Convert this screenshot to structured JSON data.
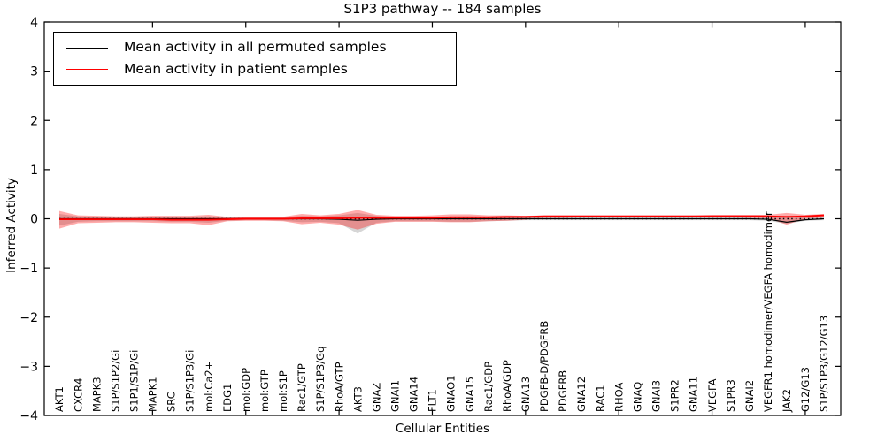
{
  "figure": {
    "title": "S1P3 pathway -- 184 samples"
  },
  "axes": {
    "x_label": "Cellular Entities",
    "y_label": "Inferred Activity"
  },
  "legend": {
    "items": [
      {
        "label": "Mean activity in all permuted samples",
        "color": "#000000"
      },
      {
        "label": "Mean activity in patient samples",
        "color": "#ff0000"
      }
    ]
  },
  "chart_data": {
    "type": "line",
    "title": "S1P3 pathway -- 184 samples",
    "xlabel": "Cellular Entities",
    "ylabel": "Inferred Activity",
    "ylim": [
      -4,
      4
    ],
    "grid": false,
    "legend_position": "upper left",
    "ytick_labels": [
      "4",
      "3",
      "2",
      "1",
      "0",
      "−1",
      "−2",
      "−3",
      "−4"
    ],
    "ytick_values": [
      4,
      3,
      2,
      1,
      0,
      -1,
      -2,
      -3,
      -4
    ],
    "xtick_major_indices": [
      5,
      10,
      15,
      20,
      25,
      30,
      35,
      40
    ],
    "zero_line": {
      "value": 0,
      "style": "dotted",
      "color": "#000000"
    },
    "entities": [
      "AKT1",
      "CXCR4",
      "MAPK3",
      "S1P/S1P2/Gi",
      "S1P1/S1P/Gi",
      "MAPK1",
      "SRC",
      "S1P/S1P3/Gi",
      "mol:Ca2+",
      "EDG1",
      "mol:GDP",
      "mol:GTP",
      "mol:S1P",
      "Rac1/GTP",
      "S1P/S1P3/Gq",
      "RhoA/GTP",
      "AKT3",
      "GNAZ",
      "GNAI1",
      "GNA14",
      "FLT1",
      "GNAO1",
      "GNA15",
      "Rac1/GDP",
      "RhoA/GDP",
      "GNA13",
      "PDGFB-D/PDGFRB",
      "PDGFRB",
      "GNA12",
      "RAC1",
      "RHOA",
      "GNAQ",
      "GNAI3",
      "S1PR2",
      "GNA11",
      "VEGFA",
      "S1PR3",
      "GNAI2",
      "VEGFR1 homodimer/VEGFA homodimer",
      "JAK2",
      "G12/G13",
      "S1P/S1P3/G12/G13"
    ],
    "series": [
      {
        "name": "Mean activity in all permuted samples",
        "color": "#000000",
        "values": [
          0,
          0,
          0,
          0,
          0,
          0,
          0,
          0,
          0,
          0,
          0,
          0,
          0,
          0,
          0,
          -0.01,
          -0.03,
          -0.01,
          0,
          0,
          0,
          0,
          0,
          0,
          0,
          0,
          0,
          0,
          0,
          0,
          0,
          0,
          0,
          0,
          0,
          0,
          0,
          0,
          -0.01,
          -0.07,
          -0.02,
          0
        ]
      },
      {
        "name": "Mean activity in patient samples",
        "color": "#ff0000",
        "values": [
          -0.01,
          -0.01,
          -0.01,
          -0.01,
          -0.01,
          -0.01,
          -0.02,
          -0.02,
          -0.02,
          -0.01,
          0,
          0,
          0,
          0.01,
          0.01,
          0.01,
          0.02,
          0.02,
          0.02,
          0.02,
          0.02,
          0.03,
          0.03,
          0.03,
          0.04,
          0.04,
          0.05,
          0.05,
          0.05,
          0.05,
          0.05,
          0.05,
          0.05,
          0.05,
          0.05,
          0.05,
          0.05,
          0.05,
          0.05,
          0.04,
          0.05,
          0.07
        ]
      }
    ],
    "bands": [
      {
        "name": "permuted-samples-band",
        "color": "#808080",
        "opacity": 0.32,
        "upper": [
          0.1,
          0.05,
          0.04,
          0.04,
          0.04,
          0.04,
          0.04,
          0.04,
          0.05,
          0.03,
          0.03,
          0.03,
          0.03,
          0.06,
          0.05,
          0.07,
          0.12,
          0.06,
          0.04,
          0.04,
          0.04,
          0.05,
          0.05,
          0.04,
          0.04,
          0.03,
          0.03,
          0.03,
          0.03,
          0.03,
          0.03,
          0.03,
          0.03,
          0.03,
          0.03,
          0.03,
          0.03,
          0.03,
          0.04,
          0.06,
          0.04,
          0.05
        ],
        "lower": [
          -0.14,
          -0.06,
          -0.05,
          -0.05,
          -0.05,
          -0.05,
          -0.06,
          -0.06,
          -0.08,
          -0.04,
          -0.03,
          -0.03,
          -0.04,
          -0.07,
          -0.06,
          -0.09,
          -0.3,
          -0.08,
          -0.05,
          -0.05,
          -0.05,
          -0.06,
          -0.06,
          -0.05,
          -0.04,
          -0.03,
          -0.03,
          -0.03,
          -0.03,
          -0.03,
          -0.03,
          -0.03,
          -0.03,
          -0.03,
          -0.03,
          -0.03,
          -0.03,
          -0.03,
          -0.04,
          -0.1,
          -0.04,
          -0.03
        ]
      },
      {
        "name": "patient-samples-band",
        "color": "#ff0000",
        "opacity": 0.33,
        "upper": [
          0.16,
          0.07,
          0.06,
          0.05,
          0.05,
          0.06,
          0.06,
          0.06,
          0.08,
          0.04,
          0.03,
          0.03,
          0.04,
          0.1,
          0.07,
          0.1,
          0.18,
          0.08,
          0.06,
          0.06,
          0.07,
          0.09,
          0.09,
          0.07,
          0.07,
          0.06,
          0.07,
          0.07,
          0.07,
          0.07,
          0.07,
          0.07,
          0.07,
          0.07,
          0.07,
          0.08,
          0.08,
          0.08,
          0.08,
          0.12,
          0.08,
          0.1
        ],
        "lower": [
          -0.2,
          -0.09,
          -0.08,
          -0.07,
          -0.07,
          -0.08,
          -0.09,
          -0.09,
          -0.13,
          -0.05,
          -0.04,
          -0.04,
          -0.05,
          -0.11,
          -0.08,
          -0.12,
          -0.22,
          -0.1,
          -0.06,
          -0.06,
          -0.06,
          -0.07,
          -0.07,
          -0.05,
          -0.04,
          -0.02,
          0.02,
          0.02,
          0.03,
          0.03,
          0.03,
          0.03,
          0.03,
          0.03,
          0.03,
          0.03,
          0.03,
          0.02,
          0.01,
          -0.12,
          0.0,
          0.03
        ]
      }
    ]
  }
}
